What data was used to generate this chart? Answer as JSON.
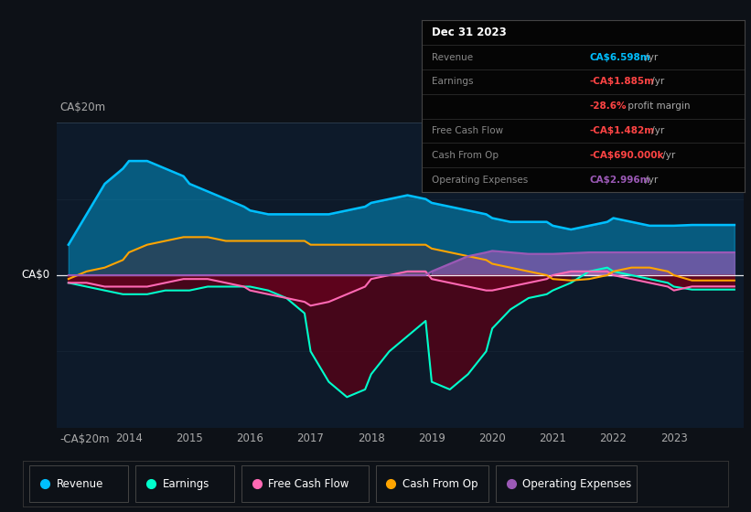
{
  "bg_color": "#0d1117",
  "plot_bg_color": "#0d1a2a",
  "ylabel_top": "CA$20m",
  "ylabel_bottom": "-CA$20m",
  "ylabel_zero": "CA$0",
  "ylim": [
    -20,
    20
  ],
  "years": [
    2013.0,
    2013.3,
    2013.6,
    2013.9,
    2014.0,
    2014.3,
    2014.6,
    2014.9,
    2015.0,
    2015.3,
    2015.6,
    2015.9,
    2016.0,
    2016.3,
    2016.6,
    2016.9,
    2017.0,
    2017.3,
    2017.6,
    2017.9,
    2018.0,
    2018.3,
    2018.6,
    2018.9,
    2019.0,
    2019.3,
    2019.6,
    2019.9,
    2020.0,
    2020.3,
    2020.6,
    2020.9,
    2021.0,
    2021.3,
    2021.6,
    2021.9,
    2022.0,
    2022.3,
    2022.6,
    2022.9,
    2023.0,
    2023.3,
    2023.6,
    2023.9,
    2024.0
  ],
  "revenue": [
    4,
    8,
    12,
    14,
    15,
    15,
    14,
    13,
    12,
    11,
    10,
    9,
    8.5,
    8,
    8,
    8,
    8,
    8,
    8.5,
    9,
    9.5,
    10,
    10.5,
    10,
    9.5,
    9,
    8.5,
    8,
    7.5,
    7,
    7,
    7,
    6.5,
    6,
    6.5,
    7,
    7.5,
    7,
    6.5,
    6.5,
    6.5,
    6.598,
    6.598,
    6.598,
    6.598
  ],
  "earnings": [
    -1,
    -1.5,
    -2,
    -2.5,
    -2.5,
    -2.5,
    -2,
    -2,
    -2,
    -1.5,
    -1.5,
    -1.5,
    -1.5,
    -2,
    -3,
    -5,
    -10,
    -14,
    -16,
    -15,
    -13,
    -10,
    -8,
    -6,
    -14,
    -15,
    -13,
    -10,
    -7,
    -4.5,
    -3,
    -2.5,
    -2,
    -1,
    0.5,
    1,
    0.5,
    0,
    -0.5,
    -1,
    -1.5,
    -1.885,
    -1.885,
    -1.885,
    -1.885
  ],
  "free_cash_flow": [
    -1,
    -1,
    -1.5,
    -1.5,
    -1.5,
    -1.5,
    -1,
    -0.5,
    -0.5,
    -0.5,
    -1,
    -1.5,
    -2,
    -2.5,
    -3,
    -3.5,
    -4,
    -3.5,
    -2.5,
    -1.5,
    -0.5,
    0,
    0.5,
    0.5,
    -0.5,
    -1,
    -1.5,
    -2,
    -2,
    -1.5,
    -1,
    -0.5,
    0,
    0.5,
    0.5,
    0.5,
    0,
    -0.5,
    -1,
    -1.5,
    -2,
    -1.482,
    -1.482,
    -1.482,
    -1.482
  ],
  "cash_from_op": [
    -0.5,
    0.5,
    1,
    2,
    3,
    4,
    4.5,
    5,
    5,
    5,
    4.5,
    4.5,
    4.5,
    4.5,
    4.5,
    4.5,
    4,
    4,
    4,
    4,
    4,
    4,
    4,
    4,
    3.5,
    3,
    2.5,
    2,
    1.5,
    1,
    0.5,
    0,
    -0.5,
    -0.69,
    -0.5,
    0,
    0.5,
    1,
    1,
    0.5,
    0,
    -0.69,
    -0.69,
    -0.69,
    -0.69
  ],
  "op_expenses": [
    0,
    0,
    0,
    0,
    0,
    0,
    0,
    0,
    0,
    0,
    0,
    0,
    0,
    0,
    0,
    0,
    0,
    0,
    0,
    0,
    0,
    0,
    0,
    0,
    0.5,
    1.5,
    2.5,
    3,
    3.2,
    3,
    2.8,
    2.8,
    2.8,
    2.9,
    3,
    3,
    3,
    3,
    3,
    3,
    3,
    2.996,
    2.996,
    2.996,
    2.996
  ],
  "revenue_color": "#00bfff",
  "earnings_color": "#00ffcc",
  "free_cash_flow_color": "#ff69b4",
  "cash_from_op_color": "#ffa500",
  "op_expenses_color": "#9b59b6",
  "info_revenue_color": "#00bfff",
  "info_earnings_color": "#ff4444",
  "info_margin_color": "#ff4444",
  "info_fcf_color": "#ff4444",
  "info_cfop_color": "#ff4444",
  "info_opex_color": "#9b59b6",
  "xtick_labels": [
    "",
    "2014",
    "2015",
    "2016",
    "2017",
    "2018",
    "2019",
    "2020",
    "2021",
    "2022",
    "2023",
    ""
  ]
}
